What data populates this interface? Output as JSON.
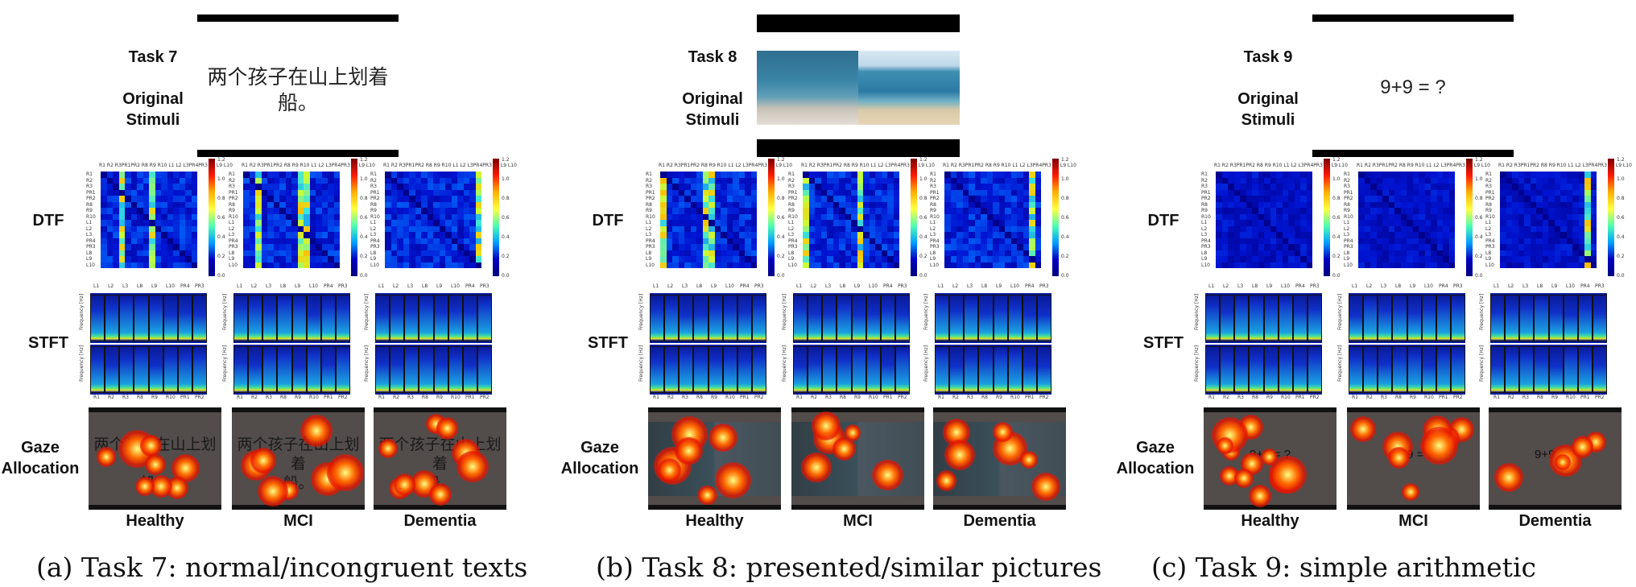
{
  "panels": [
    {
      "task": "Task 7",
      "stimulus_label": "Original Stimuli",
      "stimulus_type": "text",
      "stimulus_text_line1": "两个孩子在山上划着",
      "stimulus_text_line2": "船。",
      "gaze_text_line1": "两个孩子在山上划着",
      "gaze_text_line2": "船。",
      "caption": "(a) Task 7: normal/incongruent texts"
    },
    {
      "task": "Task 8",
      "stimulus_label": "Original Stimuli",
      "stimulus_type": "picture",
      "caption": "(b) Task 8: presented/similar pictures"
    },
    {
      "task": "Task 9",
      "stimulus_label": "Original Stimuli",
      "stimulus_type": "arithmetic",
      "stimulus_text": "9+9 = ?",
      "gaze_text": "9+9 = ?",
      "caption": "(c) Task 9: simple arithmetic"
    }
  ],
  "row_labels": {
    "dtf": "DTF",
    "stft": "STFT",
    "gaze": "Gaze Allocation",
    "gaze_line1": "Gaze",
    "gaze_line2": "Allocation",
    "stim_line1": "Original",
    "stim_line2": "Stimuli"
  },
  "groups": [
    "Healthy",
    "MCI",
    "Dementia"
  ],
  "dtf_axis": {
    "top_ticks": "R1 R2 R3PR1PR2 R8 R9 R10 L1 L2 L3PR4PR3 L8 L9 L10",
    "left_ticks": [
      "R1",
      "R2",
      "R3",
      "PR1",
      "PR2",
      "R8",
      "R9",
      "R10",
      "L1",
      "L2",
      "L3",
      "PR4",
      "PR3",
      "L8",
      "L9",
      "L10"
    ],
    "colorbar_ticks": [
      "1.2",
      "1.0",
      "0.8",
      "0.6",
      "0.4",
      "0.2",
      "0.0"
    ]
  },
  "stft_axis": {
    "top_ticks": [
      "L1",
      "L2",
      "L3",
      "L8",
      "L9",
      "L10",
      "PR4",
      "PR3"
    ],
    "bottom_ticks": [
      "R1",
      "R2",
      "R3",
      "R8",
      "R9",
      "R10",
      "PR1",
      "PR2"
    ],
    "ylabel": "Frequency [Hz]"
  },
  "colors": {
    "matrix_bg": "#0b14c8",
    "gaze_bg": "#524c4a",
    "bar": "#000000"
  }
}
